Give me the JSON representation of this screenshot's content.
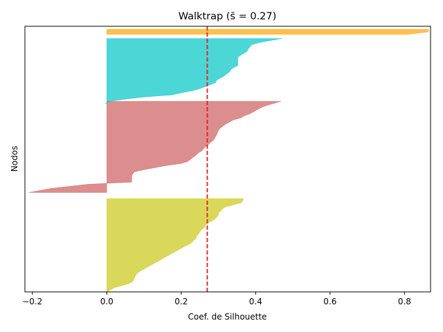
{
  "chart_data": {
    "type": "area",
    "title": "Walktrap (s̄ = 0.27)",
    "xlabel": "Coef. de Silhouette",
    "ylabel": "Nodos",
    "xlim": [
      -0.22,
      0.87
    ],
    "ylim": [
      0,
      131
    ],
    "xticks": [
      -0.2,
      0.0,
      0.2,
      0.4,
      0.6,
      0.8
    ],
    "xtick_labels": [
      "−0.2",
      "0.0",
      "0.2",
      "0.4",
      "0.6",
      "0.8"
    ],
    "mean_silhouette": 0.27,
    "mean_line_color": "#e41a1c",
    "grid": false,
    "legend": "none",
    "series": [
      {
        "color": "#c9c814",
        "y_range": [
          0,
          46
        ],
        "values": [
          0.368,
          0.365,
          0.362,
          0.34,
          0.32,
          0.31,
          0.307,
          0.3,
          0.3,
          0.295,
          0.29,
          0.28,
          0.27,
          0.265,
          0.262,
          0.255,
          0.25,
          0.247,
          0.242,
          0.24,
          0.235,
          0.23,
          0.222,
          0.21,
          0.2,
          0.19,
          0.18,
          0.17,
          0.16,
          0.15,
          0.14,
          0.13,
          0.12,
          0.11,
          0.1,
          0.09,
          0.082,
          0.078,
          0.075,
          0.073,
          0.07,
          0.06,
          0.04,
          0.02,
          0.01,
          0.0
        ]
      },
      {
        "color": "#cd5c5c",
        "y_range": [
          49,
          94
        ],
        "values": [
          0.468,
          0.45,
          0.43,
          0.415,
          0.405,
          0.395,
          0.385,
          0.37,
          0.36,
          0.34,
          0.33,
          0.32,
          0.312,
          0.305,
          0.3,
          0.298,
          0.296,
          0.292,
          0.29,
          0.285,
          0.278,
          0.272,
          0.265,
          0.26,
          0.255,
          0.245,
          0.24,
          0.232,
          0.225,
          0.218,
          0.2,
          0.16,
          0.13,
          0.1,
          0.075,
          0.07,
          0.067,
          0.067,
          0.067,
          0.067,
          -0.05,
          -0.1,
          -0.15,
          -0.18,
          -0.21
        ]
      },
      {
        "color": "#00c5c5",
        "y_range": [
          93,
          125
        ],
        "values": [
          0.472,
          0.44,
          0.41,
          0.39,
          0.385,
          0.38,
          0.378,
          0.37,
          0.36,
          0.352,
          0.352,
          0.352,
          0.352,
          0.352,
          0.34,
          0.333,
          0.33,
          0.322,
          0.315,
          0.305,
          0.295,
          0.293,
          0.28,
          0.265,
          0.25,
          0.23,
          0.2,
          0.175,
          0.1,
          0.05,
          0.01,
          -0.005
        ]
      },
      {
        "color": "#ffa500",
        "y_range": [
          127,
          129.5
        ],
        "values": [
          0.865,
          0.865,
          0.81
        ]
      }
    ]
  }
}
